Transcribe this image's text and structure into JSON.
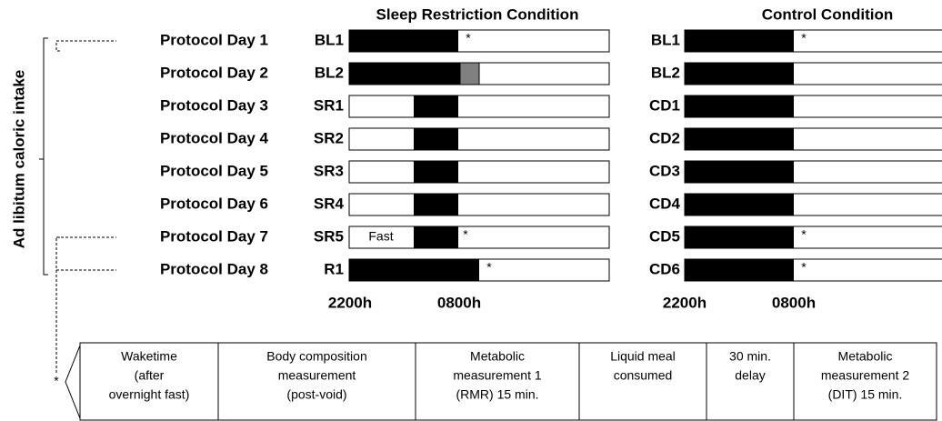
{
  "side_label": "Ad libitum caloric intake",
  "protocol_days": [
    "Protocol Day 1",
    "Protocol Day 2",
    "Protocol Day 3",
    "Protocol Day 4",
    "Protocol Day 5",
    "Protocol Day 6",
    "Protocol Day 7",
    "Protocol Day 8"
  ],
  "conditions": [
    {
      "title": "Sleep Restriction Condition",
      "rows": [
        "BL1",
        "BL2",
        "SR1",
        "SR2",
        "SR3",
        "SR4",
        "SR5",
        "R1"
      ],
      "axis": [
        "2200h",
        "0800h"
      ]
    },
    {
      "title": "Control Condition",
      "rows": [
        "BL1",
        "BL2",
        "CD1",
        "CD2",
        "CD3",
        "CD4",
        "CD5",
        "CD6"
      ],
      "axis": [
        "2200h",
        "0800h"
      ]
    }
  ],
  "annotations": {
    "asterisk": "*",
    "fast": "Fast"
  },
  "timeline": [
    [
      "Waketime",
      "(after",
      "overnight fast)"
    ],
    [
      "Body composition",
      "measurement",
      "(post-void)"
    ],
    [
      "Metabolic",
      "measurement 1",
      "(RMR) 15 min."
    ],
    [
      "Liquid meal",
      "consumed"
    ],
    [
      "30 min.",
      "delay"
    ],
    [
      "Metabolic",
      "measurement 2",
      "(DIT) 15 min."
    ]
  ]
}
